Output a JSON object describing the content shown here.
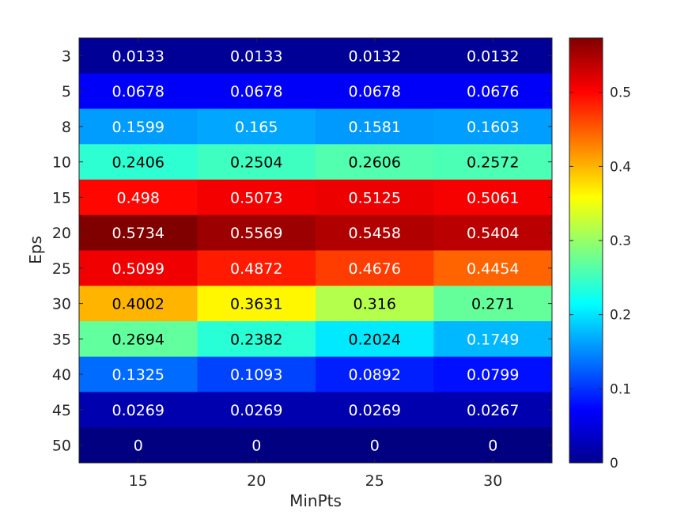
{
  "chart_data": {
    "type": "heatmap",
    "title": "",
    "xlabel": "MinPts",
    "ylabel": "Eps",
    "x_categories": [
      "15",
      "20",
      "25",
      "30"
    ],
    "y_categories": [
      "3",
      "5",
      "8",
      "10",
      "15",
      "20",
      "25",
      "30",
      "35",
      "40",
      "45",
      "50"
    ],
    "values": [
      [
        0.0133,
        0.0133,
        0.0132,
        0.0132
      ],
      [
        0.0678,
        0.0678,
        0.0678,
        0.0676
      ],
      [
        0.1599,
        0.165,
        0.1581,
        0.1603
      ],
      [
        0.2406,
        0.2504,
        0.2606,
        0.2572
      ],
      [
        0.498,
        0.5073,
        0.5125,
        0.5061
      ],
      [
        0.5734,
        0.5569,
        0.5458,
        0.5404
      ],
      [
        0.5099,
        0.4872,
        0.4676,
        0.4454
      ],
      [
        0.4002,
        0.3631,
        0.316,
        0.271
      ],
      [
        0.2694,
        0.2382,
        0.2024,
        0.1749
      ],
      [
        0.1325,
        0.1093,
        0.0892,
        0.0799
      ],
      [
        0.0269,
        0.0269,
        0.0269,
        0.0267
      ],
      [
        0,
        0,
        0,
        0
      ]
    ],
    "labels": [
      [
        "0.0133",
        "0.0133",
        "0.0132",
        "0.0132"
      ],
      [
        "0.0678",
        "0.0678",
        "0.0678",
        "0.0676"
      ],
      [
        "0.1599",
        "0.165",
        "0.1581",
        "0.1603"
      ],
      [
        "0.2406",
        "0.2504",
        "0.2606",
        "0.2572"
      ],
      [
        "0.498",
        "0.5073",
        "0.5125",
        "0.5061"
      ],
      [
        "0.5734",
        "0.5569",
        "0.5458",
        "0.5404"
      ],
      [
        "0.5099",
        "0.4872",
        "0.4676",
        "0.4454"
      ],
      [
        "0.4002",
        "0.3631",
        "0.316",
        "0.271"
      ],
      [
        "0.2694",
        "0.2382",
        "0.2024",
        "0.1749"
      ],
      [
        "0.1325",
        "0.1093",
        "0.0892",
        "0.0799"
      ],
      [
        "0.0269",
        "0.0269",
        "0.0269",
        "0.0267"
      ],
      [
        "0",
        "0",
        "0",
        "0"
      ]
    ],
    "colormap": "jet",
    "color_range": [
      0,
      0.5734
    ],
    "colorbar_ticks": [
      "0",
      "0.1",
      "0.2",
      "0.3",
      "0.4",
      "0.5"
    ],
    "grid": false
  }
}
